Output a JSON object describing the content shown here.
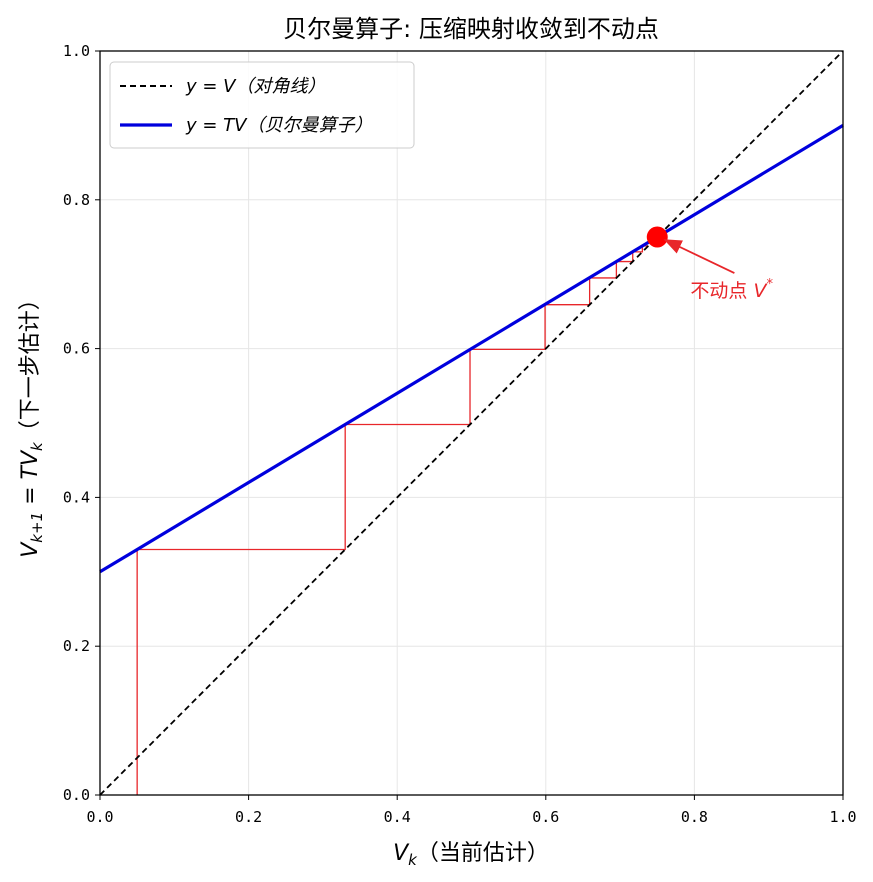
{
  "chart_data": {
    "type": "line",
    "title": "贝尔曼算子: 压缩映射收敛到不动点",
    "xlabel": "V_k（当前估计）",
    "ylabel": "V_{k+1} = TV_k（下一步估计）",
    "xlim": [
      0.0,
      1.0
    ],
    "ylim": [
      0.0,
      1.0
    ],
    "xticks": [
      "0.0",
      "0.2",
      "0.4",
      "0.6",
      "0.8",
      "1.0"
    ],
    "yticks": [
      "0.0",
      "0.2",
      "0.4",
      "0.6",
      "0.8",
      "1.0"
    ],
    "grid": true,
    "legend_position": "upper-left",
    "series": [
      {
        "name": "y = V（对角线）",
        "style": "dashed",
        "color": "#000000",
        "x": [
          0.0,
          1.0
        ],
        "y": [
          0.0,
          1.0
        ]
      },
      {
        "name": "y = TV（贝尔曼算子）",
        "style": "solid",
        "color": "#0000dd",
        "x": [
          0.0,
          1.0
        ],
        "y": [
          0.3,
          0.9
        ]
      }
    ],
    "iteration_path": {
      "color": "#e8262a",
      "points": [
        [
          0.05,
          0.0
        ],
        [
          0.05,
          0.33
        ],
        [
          0.33,
          0.33
        ],
        [
          0.33,
          0.498
        ],
        [
          0.498,
          0.498
        ],
        [
          0.498,
          0.599
        ],
        [
          0.599,
          0.599
        ],
        [
          0.599,
          0.659
        ],
        [
          0.659,
          0.659
        ],
        [
          0.659,
          0.695
        ],
        [
          0.695,
          0.695
        ],
        [
          0.695,
          0.717
        ],
        [
          0.717,
          0.717
        ],
        [
          0.717,
          0.73
        ],
        [
          0.73,
          0.73
        ],
        [
          0.73,
          0.738
        ],
        [
          0.738,
          0.738
        ]
      ]
    },
    "fixed_point": {
      "x": 0.75,
      "y": 0.75,
      "color": "#ff0000",
      "label": "不动点 V*",
      "label_x": 0.8,
      "label_y": 0.68
    }
  }
}
